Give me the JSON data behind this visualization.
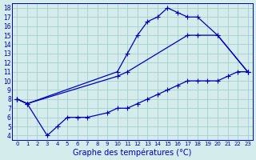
{
  "title": "Graphe des températures (°C)",
  "background_color": "#d4ecec",
  "line_color": "#0000bb",
  "grid_color": "#a0c8c8",
  "x_labels": [
    "0",
    "1",
    "2",
    "3",
    "4",
    "5",
    "6",
    "7",
    "8",
    "9",
    "10",
    "11",
    "12",
    "13",
    "14",
    "15",
    "16",
    "17",
    "18",
    "19",
    "20",
    "21",
    "22",
    "23"
  ],
  "y_min": 4,
  "y_max": 18,
  "x_top": [
    0,
    1,
    10,
    11,
    12,
    13,
    14,
    15,
    16,
    17,
    18,
    20,
    23
  ],
  "y_top": [
    8,
    7.5,
    11,
    13,
    15,
    16.5,
    17,
    18,
    17.5,
    17,
    17,
    15,
    11
  ],
  "x_mid": [
    0,
    1,
    10,
    11,
    17,
    18,
    20,
    23
  ],
  "y_mid": [
    8,
    7.5,
    10.5,
    11,
    15,
    15,
    15,
    11
  ],
  "x_bot": [
    0,
    1,
    3,
    4,
    5,
    6,
    7,
    9,
    10,
    11,
    12,
    13,
    14,
    15,
    16,
    17,
    18,
    19,
    20,
    21,
    22,
    23
  ],
  "y_bot": [
    8,
    7.5,
    4,
    5,
    6,
    6,
    6,
    6.5,
    7,
    7,
    7.5,
    8,
    8.5,
    9,
    9.5,
    10,
    10,
    10,
    10,
    10.5,
    11,
    11
  ]
}
